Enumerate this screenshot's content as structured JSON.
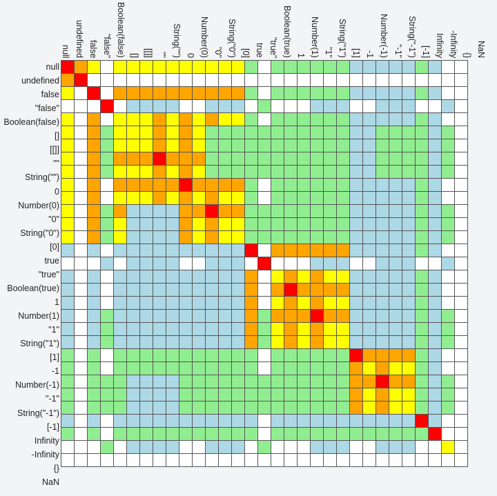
{
  "chart_data": {
    "type": "heatmap",
    "title": "",
    "labels": [
      "null",
      "undefined",
      "false",
      "\"false\"",
      "Boolean(false)",
      "[]",
      "[[]]",
      "\"\"",
      "String(\"\")",
      "0",
      "Number(0)",
      "\"0\"",
      "String(\"0\")",
      "[0]",
      "true",
      "\"true\"",
      "Boolean(true)",
      "1",
      "Number(1)",
      "\"1\"",
      "String(\"1\")",
      "[1]",
      "-1",
      "Number(-1)",
      "\"-1\"",
      "String(\"-1\")",
      "[-1]",
      "Infinity",
      "-Infinity",
      "{}",
      "NaN"
    ],
    "legend_colors": {
      "R": "#ff0000",
      "O": "#ffa500",
      "Y": "#ffff00",
      "G": "#90ee90",
      "B": "#add8e6",
      "W": "#ffffff"
    },
    "rows": [
      "ROYWYYYYYYYYYYGWGGGGGGBBBBBGBWW",
      "ORWWWWWWWWWWWWWWWWWWWWWWWWWWWWW",
      "YWRWOOOOOOOOOOGWGGGGGGBBBBBGBWW",
      "WWWRWBBBBWWBBBWGWWWBBBWWBBBWWBW",
      "YWOWYYYOYOYOYYGWGGGGGGBBBBBGBWW",
      "YWOGYYYOYOYGGGGGGGGGGGBBGGGGBGW",
      "YWOGYYYOYOYGGGGGGGGGGGBBGGGGBGW",
      "YWOGOOOROOOGGGGGGGGGGGBBGGGGBGW",
      "YWOGYYYOYOYGGGGGGGGGGGBBGGGGBGW",
      "YWOWOOOOORОOOOGWGGGGGGBBBBBGBWW",
      "YWOWYYYOYOYOYYGWGGGGGGBBBBBGBWW",
      "YWOGOBBBBOORОOGGGGGGGGBBBBBGBGW",
      "YWOGYBBBBOYOYYGGGGGGGGBBBBBGBGW",
      "YWOGYBBBBOYOYYGGGGGGGGBBBBBGBGW",
      "BWBWBBBBBBBBBBRWOOOOOOBBBBBGBWW",
      "WWWBWBBBBWWBBBWRWWWBBBWWBBBWWBW",
      "BWBWBBBBBBBBBBOWYOYOYYBBBBBGBWW",
      "BWBWBBBBBBBBBBOWORООООBBBBBGBWW",
      "BWBWBBBBBBBBBBOWYOYOYYBBBBBGBWW",
      "BWBGBBBBBBBBBBOGOOORООBBBBBGBGW",
      "BWBGBBBBBBBBBBOGYOYOYYBBBBBGBGW",
      "BWBGBBBBBBBBBBOGYOYOYYBBBBBGBGW",
      "GWGWGGGGGGGGGGGWGGGGGGROOOOGBWW",
      "GWGWGGGGGGGGGGGWGGGGGGOYOYYGBWW",
      "GWGGGBBBBGGGGGGGGGGGGGOOROOGBGW",
      "GWGGGBBBBGGGGGGGGGGGGGOYOYYGBGW",
      "GWGGGBBBBGGGGGGGGGGGGGOYOYYGBGW",
      "BWBWBBBBBBBBBBBWBBBBBBBBBBBRBWW",
      "GWGWGGGGGGGGGGGWGGGGGGGGGGGGRWW",
      "WWWGWBBBBWWBBBWGWWWBBBWWBBBWWYW",
      "WWWWWWWWWWWWWWWWWWWWWWWWWWWWWWW"
    ]
  }
}
